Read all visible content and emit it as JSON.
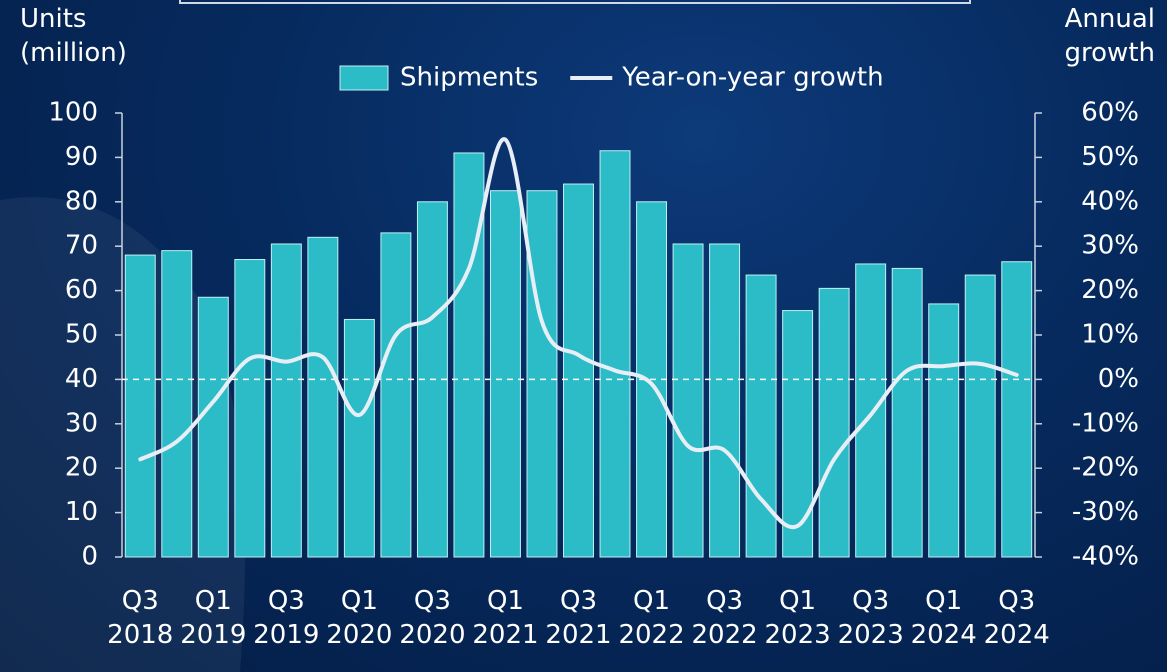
{
  "chart_data": {
    "type": "bar_line",
    "y_title": "Units (million)",
    "y2_title": "Annual growth",
    "categories": [
      "Q3 2018",
      null,
      "Q1 2019",
      null,
      "Q3 2019",
      null,
      "Q1 2020",
      null,
      "Q3 2020",
      null,
      "Q1 2021",
      null,
      "Q3 2021",
      null,
      "Q1 2022",
      null,
      "Q3 2022",
      null,
      "Q1 2023",
      null,
      "Q3 2023",
      null,
      "Q1 2024",
      null,
      "Q3 2024"
    ],
    "series": [
      {
        "name": "Shipments",
        "type": "bar",
        "color": "#2bbcc8",
        "values": [
          68,
          69,
          58.5,
          67,
          70.5,
          72,
          53.5,
          73,
          80,
          91,
          82.5,
          82.5,
          84,
          91.5,
          80,
          70.5,
          70.5,
          63.5,
          55.5,
          60.5,
          66,
          65,
          57,
          63.5,
          66.5
        ]
      },
      {
        "name": "Year-on-year growth",
        "type": "line",
        "axis": "y2",
        "color": "#e8eef5",
        "values": [
          -18,
          -14,
          -5,
          4.7,
          4,
          5,
          -8,
          10,
          14,
          25,
          54,
          13,
          5.5,
          2,
          -1,
          -15,
          -16,
          -27,
          -33,
          -18,
          -8,
          2,
          3,
          3.5,
          1
        ]
      }
    ],
    "ylim": [
      0,
      100
    ],
    "yticks": [
      0,
      10,
      20,
      30,
      40,
      50,
      60,
      70,
      80,
      90,
      100
    ],
    "y2lim": [
      -40,
      60
    ],
    "y2ticks": [
      {
        "value": -40,
        "label": "-40%"
      },
      {
        "value": -30,
        "label": "-30%"
      },
      {
        "value": -20,
        "label": "-20%"
      },
      {
        "value": -10,
        "label": "-10%"
      },
      {
        "value": 0,
        "label": "0%"
      },
      {
        "value": 10,
        "label": "10%"
      },
      {
        "value": 20,
        "label": "20%"
      },
      {
        "value": 30,
        "label": "30%"
      },
      {
        "value": 40,
        "label": "40%"
      },
      {
        "value": 50,
        "label": "50%"
      },
      {
        "value": 60,
        "label": "60%"
      }
    ],
    "zero_line": true,
    "legend": "top"
  }
}
